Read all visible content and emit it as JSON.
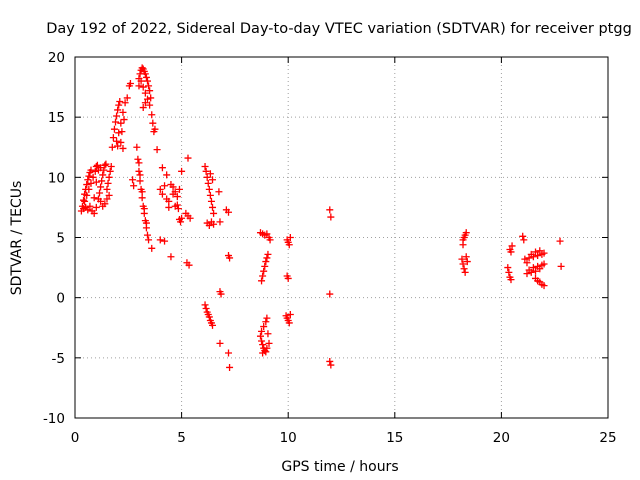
{
  "chart_data": {
    "type": "scatter",
    "title": "Day 192 of 2022, Sidereal Day-to-day VTEC variation (SDTVAR) for receiver ptgg",
    "xlabel": "GPS time / hours",
    "ylabel": "SDTVAR / TECUs",
    "xlim": [
      0,
      25
    ],
    "ylim": [
      -10,
      20
    ],
    "xticks": [
      "0",
      "5",
      "10",
      "15",
      "20",
      "25"
    ],
    "yticks": [
      "-10",
      "-5",
      "0",
      "5",
      "10",
      "15",
      "20"
    ],
    "grid": true,
    "marker": "+",
    "colors": {
      "points": "#ff0000",
      "grid": "#a0a0a0",
      "axes": "#000000"
    },
    "series": [
      {
        "points": [
          [
            0.3,
            7.2
          ],
          [
            0.35,
            7.6
          ],
          [
            0.4,
            8.1
          ],
          [
            0.45,
            8.6
          ],
          [
            0.5,
            9.0
          ],
          [
            0.55,
            9.4
          ],
          [
            0.6,
            9.8
          ],
          [
            0.65,
            10.1
          ],
          [
            0.7,
            10.4
          ],
          [
            0.75,
            10.6
          ],
          [
            0.4,
            7.4
          ],
          [
            0.5,
            7.5
          ],
          [
            0.6,
            7.3
          ],
          [
            0.7,
            7.6
          ],
          [
            0.8,
            7.2
          ],
          [
            0.9,
            7.0
          ],
          [
            0.45,
            8.0
          ],
          [
            0.55,
            8.5
          ],
          [
            0.65,
            9.0
          ],
          [
            0.75,
            9.5
          ],
          [
            0.85,
            10.0
          ],
          [
            0.95,
            10.5
          ],
          [
            1.0,
            10.9
          ],
          [
            1.05,
            11.0
          ],
          [
            1.1,
            8.2
          ],
          [
            1.15,
            8.7
          ],
          [
            1.2,
            9.2
          ],
          [
            1.25,
            9.7
          ],
          [
            1.3,
            10.2
          ],
          [
            1.35,
            10.6
          ],
          [
            1.4,
            11.0
          ],
          [
            1.45,
            11.1
          ],
          [
            1.5,
            9.0
          ],
          [
            1.55,
            9.5
          ],
          [
            1.6,
            10.0
          ],
          [
            1.65,
            10.5
          ],
          [
            1.7,
            10.9
          ],
          [
            1.1,
            10.6
          ],
          [
            1.2,
            10.8
          ],
          [
            1.0,
            7.5
          ],
          [
            1.2,
            8.0
          ],
          [
            1.4,
            7.8
          ],
          [
            1.5,
            8.2
          ],
          [
            1.6,
            8.5
          ],
          [
            1.3,
            7.6
          ],
          [
            0.9,
            8.3
          ],
          [
            1.0,
            9.6
          ],
          [
            1.75,
            12.5
          ],
          [
            1.8,
            13.3
          ],
          [
            1.85,
            14.0
          ],
          [
            1.9,
            14.6
          ],
          [
            1.95,
            15.1
          ],
          [
            2.0,
            15.6
          ],
          [
            2.05,
            16.0
          ],
          [
            2.1,
            16.3
          ],
          [
            2.15,
            14.5
          ],
          [
            2.2,
            13.8
          ],
          [
            1.95,
            13.0
          ],
          [
            2.05,
            13.7
          ],
          [
            2.15,
            12.9
          ],
          [
            2.25,
            15.4
          ],
          [
            2.35,
            16.2
          ],
          [
            2.45,
            16.6
          ],
          [
            2.55,
            17.6
          ],
          [
            2.6,
            17.8
          ],
          [
            2.0,
            12.6
          ],
          [
            2.25,
            12.4
          ],
          [
            2.3,
            14.8
          ],
          [
            3.0,
            18.2
          ],
          [
            3.05,
            18.6
          ],
          [
            3.1,
            18.9
          ],
          [
            3.15,
            19.1
          ],
          [
            3.2,
            19.0
          ],
          [
            3.25,
            18.8
          ],
          [
            3.3,
            18.6
          ],
          [
            3.35,
            18.3
          ],
          [
            3.4,
            18.0
          ],
          [
            3.45,
            17.6
          ],
          [
            3.5,
            17.2
          ],
          [
            3.55,
            16.6
          ],
          [
            3.1,
            18.0
          ],
          [
            3.2,
            17.5
          ],
          [
            3.3,
            17.0
          ],
          [
            3.4,
            16.5
          ],
          [
            3.5,
            16.0
          ],
          [
            3.6,
            15.2
          ],
          [
            3.65,
            14.5
          ],
          [
            3.7,
            13.8
          ],
          [
            3.2,
            15.8
          ],
          [
            3.3,
            16.2
          ],
          [
            3.0,
            17.6
          ],
          [
            3.75,
            14.0
          ],
          [
            3.85,
            12.3
          ],
          [
            2.9,
            12.5
          ],
          [
            2.95,
            11.5
          ],
          [
            3.0,
            10.5
          ],
          [
            3.05,
            9.7
          ],
          [
            3.1,
            9.0
          ],
          [
            3.15,
            8.3
          ],
          [
            3.2,
            7.6
          ],
          [
            3.25,
            7.0
          ],
          [
            3.3,
            6.4
          ],
          [
            3.35,
            5.8
          ],
          [
            3.4,
            5.2
          ],
          [
            3.45,
            4.8
          ],
          [
            3.05,
            10.2
          ],
          [
            3.15,
            8.8
          ],
          [
            3.25,
            7.4
          ],
          [
            3.35,
            6.2
          ],
          [
            2.7,
            9.8
          ],
          [
            2.75,
            9.3
          ],
          [
            3.0,
            11.2
          ],
          [
            3.6,
            4.1
          ],
          [
            4.0,
            4.8
          ],
          [
            4.2,
            4.7
          ],
          [
            4.5,
            3.4
          ],
          [
            4.7,
            7.6
          ],
          [
            4.8,
            7.7
          ],
          [
            4.85,
            7.4
          ],
          [
            4.9,
            6.5
          ],
          [
            4.95,
            6.3
          ],
          [
            5.0,
            6.6
          ],
          [
            5.2,
            7.0
          ],
          [
            5.3,
            6.8
          ],
          [
            5.25,
            2.9
          ],
          [
            5.35,
            2.7
          ],
          [
            5.3,
            11.6
          ],
          [
            5.0,
            10.5
          ],
          [
            4.9,
            9.0
          ],
          [
            4.7,
            8.8
          ],
          [
            4.6,
            9.2
          ],
          [
            4.0,
            9.0
          ],
          [
            4.1,
            8.6
          ],
          [
            4.2,
            9.3
          ],
          [
            4.3,
            8.2
          ],
          [
            4.4,
            8.0
          ],
          [
            4.1,
            10.8
          ],
          [
            4.3,
            10.2
          ],
          [
            4.5,
            9.4
          ],
          [
            4.8,
            8.4
          ],
          [
            4.4,
            7.5
          ],
          [
            4.6,
            8.6
          ],
          [
            5.4,
            6.6
          ],
          [
            6.1,
            10.9
          ],
          [
            6.15,
            10.5
          ],
          [
            6.2,
            10.0
          ],
          [
            6.25,
            9.5
          ],
          [
            6.3,
            9.0
          ],
          [
            6.35,
            8.5
          ],
          [
            6.4,
            8.0
          ],
          [
            6.45,
            7.5
          ],
          [
            6.5,
            7.0
          ],
          [
            6.4,
            6.3
          ],
          [
            6.5,
            6.1
          ],
          [
            6.3,
            6.0
          ],
          [
            6.2,
            6.2
          ],
          [
            6.45,
            9.8
          ],
          [
            6.35,
            10.3
          ],
          [
            6.8,
            6.3
          ],
          [
            6.75,
            8.8
          ],
          [
            7.1,
            7.3
          ],
          [
            7.2,
            7.1
          ],
          [
            6.1,
            -0.6
          ],
          [
            6.15,
            -0.9
          ],
          [
            6.2,
            -1.2
          ],
          [
            6.25,
            -1.4
          ],
          [
            6.3,
            -1.6
          ],
          [
            6.35,
            -1.9
          ],
          [
            6.4,
            -2.1
          ],
          [
            6.45,
            -2.3
          ],
          [
            6.8,
            0.5
          ],
          [
            6.85,
            0.3
          ],
          [
            6.8,
            -3.8
          ],
          [
            7.2,
            3.5
          ],
          [
            7.25,
            3.3
          ],
          [
            7.2,
            -4.6
          ],
          [
            7.25,
            -5.8
          ],
          [
            8.7,
            5.4
          ],
          [
            8.8,
            5.3
          ],
          [
            8.9,
            5.2
          ],
          [
            9.0,
            5.3
          ],
          [
            9.1,
            5.0
          ],
          [
            9.15,
            4.8
          ],
          [
            8.75,
            1.4
          ],
          [
            8.8,
            1.8
          ],
          [
            8.85,
            2.2
          ],
          [
            8.9,
            2.6
          ],
          [
            8.95,
            3.0
          ],
          [
            9.0,
            3.3
          ],
          [
            9.05,
            3.6
          ],
          [
            8.7,
            -3.2
          ],
          [
            8.75,
            -3.6
          ],
          [
            8.8,
            -3.9
          ],
          [
            8.85,
            -4.2
          ],
          [
            8.9,
            -4.4
          ],
          [
            8.95,
            -4.5
          ],
          [
            8.75,
            -2.8
          ],
          [
            8.85,
            -2.4
          ],
          [
            8.95,
            -2.0
          ],
          [
            9.0,
            -1.7
          ],
          [
            9.05,
            -3.0
          ],
          [
            9.1,
            -3.8
          ],
          [
            8.8,
            -4.6
          ],
          [
            9.0,
            -4.2
          ],
          [
            9.95,
            4.8
          ],
          [
            10.0,
            4.6
          ],
          [
            10.05,
            4.4
          ],
          [
            10.1,
            5.0
          ],
          [
            9.95,
            1.8
          ],
          [
            10.0,
            1.6
          ],
          [
            9.9,
            -1.5
          ],
          [
            9.95,
            -1.7
          ],
          [
            10.0,
            -1.9
          ],
          [
            10.05,
            -2.1
          ],
          [
            10.1,
            -1.4
          ],
          [
            11.95,
            7.3
          ],
          [
            12.0,
            6.7
          ],
          [
            11.95,
            0.3
          ],
          [
            11.95,
            -5.3
          ],
          [
            12.0,
            -5.6
          ],
          [
            18.2,
            4.8
          ],
          [
            18.25,
            5.0
          ],
          [
            18.3,
            5.2
          ],
          [
            18.35,
            5.4
          ],
          [
            18.2,
            4.4
          ],
          [
            18.15,
            3.2
          ],
          [
            18.2,
            2.8
          ],
          [
            18.25,
            2.4
          ],
          [
            18.3,
            2.1
          ],
          [
            18.35,
            3.4
          ],
          [
            18.4,
            3.0
          ],
          [
            20.4,
            4.0
          ],
          [
            20.5,
            4.3
          ],
          [
            20.45,
            3.8
          ],
          [
            20.3,
            2.5
          ],
          [
            20.35,
            2.1
          ],
          [
            20.4,
            1.7
          ],
          [
            20.45,
            1.5
          ],
          [
            21.0,
            5.1
          ],
          [
            21.05,
            4.8
          ],
          [
            21.1,
            3.2
          ],
          [
            21.2,
            2.9
          ],
          [
            21.3,
            3.3
          ],
          [
            21.4,
            3.6
          ],
          [
            21.5,
            3.4
          ],
          [
            21.6,
            3.8
          ],
          [
            21.7,
            3.5
          ],
          [
            21.8,
            3.9
          ],
          [
            21.9,
            3.6
          ],
          [
            22.0,
            3.7
          ],
          [
            21.3,
            2.3
          ],
          [
            21.4,
            2.1
          ],
          [
            21.5,
            2.5
          ],
          [
            21.6,
            2.2
          ],
          [
            21.7,
            2.6
          ],
          [
            21.8,
            2.4
          ],
          [
            21.9,
            2.7
          ],
          [
            22.0,
            2.8
          ],
          [
            21.6,
            1.6
          ],
          [
            21.7,
            1.4
          ],
          [
            21.8,
            1.3
          ],
          [
            21.9,
            1.1
          ],
          [
            22.0,
            1.0
          ],
          [
            21.2,
            2.0
          ],
          [
            22.75,
            4.7
          ],
          [
            22.8,
            2.6
          ]
        ]
      }
    ]
  }
}
